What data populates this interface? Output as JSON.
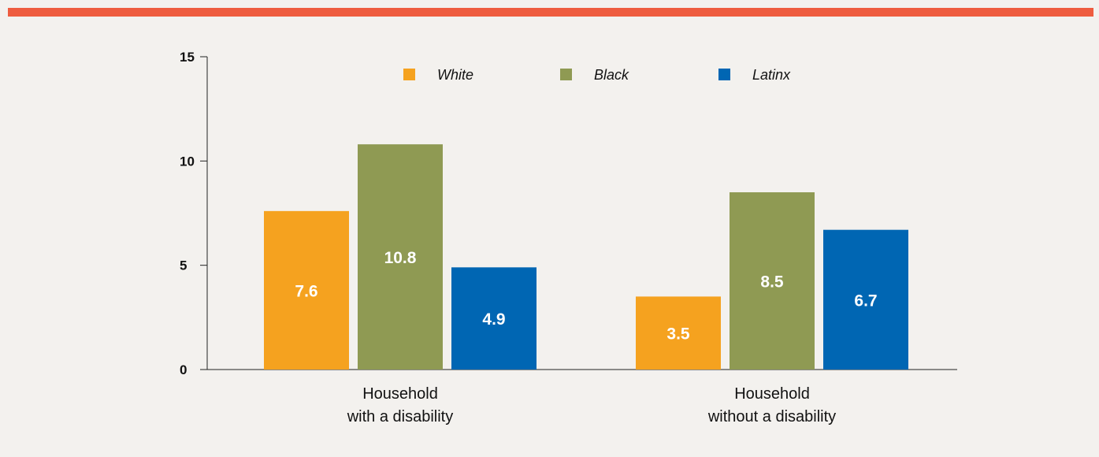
{
  "colors": {
    "top_bar": "#ee5c3f",
    "background": "#f3f1ee",
    "axis": "#222222"
  },
  "chart_data": {
    "type": "bar",
    "title": "",
    "xlabel": "",
    "ylabel": "",
    "ylim": [
      0,
      15
    ],
    "yticks": [
      0,
      5,
      10,
      15
    ],
    "grid": false,
    "legend_position": "top",
    "categories": [
      [
        "Household",
        "with a disability"
      ],
      [
        "Household",
        "without a disability"
      ]
    ],
    "series": [
      {
        "name": "White",
        "color": "#f5a21f",
        "values": [
          7.6,
          3.5
        ],
        "labels": [
          "7.6",
          "3.5"
        ]
      },
      {
        "name": "Black",
        "color": "#8f9a53",
        "values": [
          10.8,
          8.5
        ],
        "labels": [
          "10.8",
          "8.5"
        ]
      },
      {
        "name": "Latinx",
        "color": "#0066b3",
        "values": [
          4.9,
          6.7
        ],
        "labels": [
          "4.9",
          "6.7"
        ]
      }
    ]
  }
}
